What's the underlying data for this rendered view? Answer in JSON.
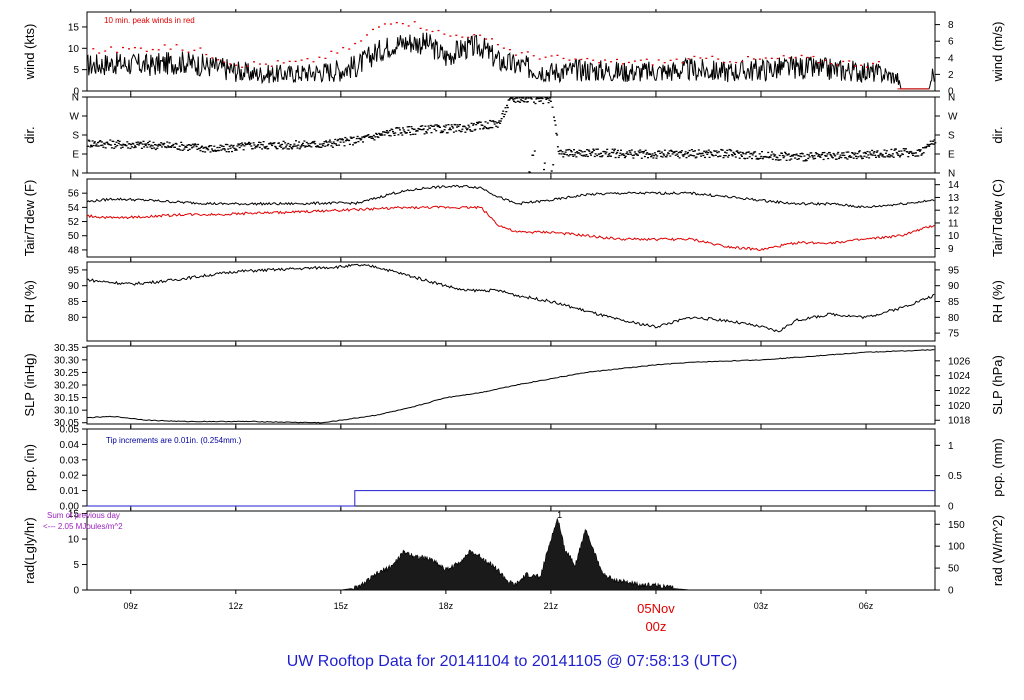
{
  "page": {
    "title": "UW Rooftop Data for 20141104  to  20141105 @ 07:58:13  (UTC)"
  },
  "colors": {
    "line": "#000000",
    "peak": "#e00000",
    "dew": "#e00000",
    "precip": "#1f1fd0",
    "note": "#00009c",
    "radNote": "#9b1fbf",
    "time": "#e00000",
    "title": "#1f1fd0"
  },
  "time_axis": {
    "range_hours": [
      7.75,
      31.97
    ],
    "ticks": [
      {
        "h": 9,
        "label": "09z"
      },
      {
        "h": 12,
        "label": "12z"
      },
      {
        "h": 15,
        "label": "15z"
      },
      {
        "h": 18,
        "label": "18z"
      },
      {
        "h": 21,
        "label": "21z"
      },
      {
        "h": 24,
        "label": "00z"
      },
      {
        "h": 27,
        "label": "03z"
      },
      {
        "h": 30,
        "label": "06z"
      }
    ],
    "date_label": "05Nov",
    "date_time_label": "00z"
  },
  "chart_data": [
    {
      "id": "wind",
      "type": "line",
      "ylabel_left": "wind (kts)",
      "ylabel_right": "wind (m/s)",
      "ylim": [
        0,
        18.5
      ],
      "yticks_left": [
        {
          "v": 0,
          "label": "0"
        },
        {
          "v": 5,
          "label": "5"
        },
        {
          "v": 10,
          "label": "10"
        },
        {
          "v": 15,
          "label": "15"
        }
      ],
      "yticks_right": [
        {
          "v": 0,
          "label": "0"
        },
        {
          "v": 3.89,
          "label": "2"
        },
        {
          "v": 7.78,
          "label": "4"
        },
        {
          "v": 11.66,
          "label": "6"
        },
        {
          "v": 15.55,
          "label": "8"
        }
      ],
      "note": "10 min. peak winds in red",
      "series": [
        {
          "style": "line",
          "x": [
            7.75,
            8.5,
            9.5,
            10.5,
            11.5,
            12.5,
            13.5,
            14.5,
            15,
            15.5,
            16,
            16.5,
            17,
            17.5,
            18,
            18.5,
            19,
            19.5,
            20,
            21,
            22,
            23,
            24,
            25,
            26,
            27,
            28,
            29,
            30,
            30.5,
            30.9,
            31,
            31.8,
            31.9
          ],
          "y": [
            6,
            6.5,
            6,
            6.8,
            5.5,
            4,
            4,
            4.5,
            5,
            6,
            9,
            11,
            11.5,
            11,
            8,
            10,
            10.5,
            7,
            6,
            4.5,
            5,
            4.5,
            4.5,
            5,
            4.5,
            5,
            5.5,
            5,
            4.5,
            4,
            3,
            0.5,
            0.5,
            4
          ]
        },
        {
          "style": "points",
          "name": "10 min. peak winds in red",
          "x": [
            8,
            9,
            10,
            11,
            12,
            13,
            14,
            15,
            15.5,
            16,
            16.5,
            17,
            17.5,
            18,
            18.5,
            19,
            19.5,
            20,
            21,
            22,
            23,
            24,
            25,
            26,
            27,
            28,
            29,
            30
          ],
          "y": [
            9.5,
            10,
            10.5,
            9.5,
            6.5,
            6.5,
            7,
            9.5,
            11.5,
            15,
            17,
            16,
            15,
            13,
            13.5,
            12.5,
            11,
            9,
            8,
            7,
            7,
            7,
            7.5,
            7.5,
            7.5,
            8,
            7,
            6.5
          ]
        }
      ]
    },
    {
      "id": "dir",
      "type": "scatter",
      "ylabel_left": "dir.",
      "ylabel_right": "dir.",
      "ylim": [
        0,
        360
      ],
      "yticks_left": [
        {
          "v": 0,
          "label": "N"
        },
        {
          "v": 90,
          "label": "E"
        },
        {
          "v": 180,
          "label": "S"
        },
        {
          "v": 270,
          "label": "W"
        },
        {
          "v": 360,
          "label": "N"
        }
      ],
      "yticks_right": [
        {
          "v": 0,
          "label": "N"
        },
        {
          "v": 90,
          "label": "E"
        },
        {
          "v": 180,
          "label": "S"
        },
        {
          "v": 270,
          "label": "W"
        },
        {
          "v": 360,
          "label": "N"
        }
      ],
      "series": [
        {
          "style": "points",
          "x": [
            7.75,
            8.5,
            9.5,
            10.5,
            11.5,
            12.5,
            13.5,
            14.5,
            15.5,
            16.5,
            17.5,
            18.5,
            19.5,
            19.8,
            20,
            20.5,
            21,
            21.2,
            21.5,
            22,
            23,
            24,
            25,
            26,
            27,
            28,
            29,
            30,
            31,
            31.5,
            31.9
          ],
          "y": [
            145,
            140,
            135,
            130,
            115,
            135,
            135,
            140,
            160,
            200,
            210,
            215,
            240,
            345,
            355,
            350,
            350,
            100,
            95,
            100,
            95,
            90,
            95,
            95,
            85,
            80,
            80,
            90,
            100,
            100,
            150
          ]
        }
      ]
    },
    {
      "id": "temp",
      "type": "line",
      "ylabel_left": "Tair/Tdew (F)",
      "ylabel_right": "Tair/Tdew (C)",
      "ylim": [
        47,
        58
      ],
      "yticks_left": [
        {
          "v": 48,
          "label": "48"
        },
        {
          "v": 50,
          "label": "50"
        },
        {
          "v": 52,
          "label": "52"
        },
        {
          "v": 54,
          "label": "54"
        },
        {
          "v": 56,
          "label": "56"
        }
      ],
      "yticks_right": [
        {
          "v": 48.2,
          "label": "9"
        },
        {
          "v": 50,
          "label": "10"
        },
        {
          "v": 51.8,
          "label": "11"
        },
        {
          "v": 53.6,
          "label": "12"
        },
        {
          "v": 55.4,
          "label": "13"
        },
        {
          "v": 57.2,
          "label": "14"
        }
      ],
      "series": [
        {
          "name": "Tair",
          "x": [
            7.75,
            8.5,
            9.5,
            10.5,
            11.5,
            12.5,
            13.5,
            14.5,
            15.5,
            16.5,
            17.5,
            18.5,
            19,
            19.5,
            20,
            21,
            22,
            23,
            24,
            25,
            26,
            27,
            28,
            29,
            30,
            31,
            31.97
          ],
          "y": [
            54.8,
            55.2,
            55,
            54.7,
            54.5,
            54.5,
            54.5,
            54.6,
            54.6,
            56,
            56.8,
            57,
            56.8,
            55.5,
            54.5,
            55,
            55.8,
            56,
            56,
            56,
            55.5,
            55,
            54.5,
            54.5,
            54,
            54.5,
            55
          ]
        },
        {
          "name": "Tdew",
          "x": [
            7.75,
            8.5,
            9.5,
            10.5,
            11.5,
            12.5,
            13.5,
            14.5,
            15.5,
            16.5,
            17.5,
            18.5,
            19,
            19.5,
            20,
            21,
            22,
            23,
            24,
            25,
            26,
            27,
            28,
            29,
            30,
            31,
            31.97
          ],
          "y": [
            52.8,
            52.5,
            52.7,
            53,
            53,
            53.2,
            53.3,
            53.5,
            53.7,
            53.9,
            54,
            54,
            54,
            51.5,
            50.5,
            50.5,
            50,
            49.5,
            49.5,
            49.5,
            48.5,
            48,
            49,
            49,
            49.5,
            50,
            51.5
          ]
        }
      ]
    },
    {
      "id": "rh",
      "type": "line",
      "ylabel_left": "RH (%)",
      "ylabel_right": "RH (%)",
      "ylim": [
        72.5,
        97.5
      ],
      "yticks_left": [
        {
          "v": 80,
          "label": "80"
        },
        {
          "v": 85,
          "label": "85"
        },
        {
          "v": 90,
          "label": "90"
        },
        {
          "v": 95,
          "label": "95"
        }
      ],
      "yticks_right": [
        {
          "v": 75,
          "label": "75"
        },
        {
          "v": 80,
          "label": "80"
        },
        {
          "v": 85,
          "label": "85"
        },
        {
          "v": 90,
          "label": "90"
        },
        {
          "v": 95,
          "label": "95"
        }
      ],
      "series": [
        {
          "x": [
            7.75,
            8,
            9,
            10,
            11,
            12,
            13,
            14,
            15,
            15.5,
            16,
            16.5,
            17,
            17.5,
            18,
            18.5,
            19,
            19.5,
            20,
            21,
            22,
            23,
            24,
            25,
            26,
            27,
            27.5,
            28,
            29,
            30,
            31,
            31.97
          ],
          "y": [
            92,
            91.5,
            90.5,
            91.5,
            93,
            94.5,
            95,
            95.5,
            96,
            96.5,
            96,
            94.5,
            93,
            91.5,
            90,
            88.5,
            88.5,
            88.5,
            87,
            85,
            82,
            79,
            77,
            80,
            79,
            77,
            75.5,
            79,
            81,
            80,
            83,
            87
          ]
        }
      ]
    },
    {
      "id": "slp",
      "type": "line",
      "ylabel_left": "SLP (inHg)",
      "ylabel_right": "SLP (hPa)",
      "ylim": [
        30.045,
        30.355
      ],
      "yticks_left": [
        {
          "v": 30.05,
          "label": "30.05"
        },
        {
          "v": 30.1,
          "label": "30.10"
        },
        {
          "v": 30.15,
          "label": "30.15"
        },
        {
          "v": 30.2,
          "label": "30.20"
        },
        {
          "v": 30.25,
          "label": "30.25"
        },
        {
          "v": 30.3,
          "label": "30.30"
        },
        {
          "v": 30.35,
          "label": "30.35"
        }
      ],
      "yticks_right": [
        {
          "v": 30.06,
          "label": "1018"
        },
        {
          "v": 30.119,
          "label": "1020"
        },
        {
          "v": 30.178,
          "label": "1022"
        },
        {
          "v": 30.237,
          "label": "1024"
        },
        {
          "v": 30.296,
          "label": "1026"
        }
      ],
      "series": [
        {
          "x": [
            7.75,
            8.5,
            9.5,
            10.5,
            11.5,
            12.5,
            13.5,
            14.5,
            15,
            16,
            17,
            18,
            19,
            20,
            21,
            22,
            23,
            24,
            25,
            26,
            27,
            28,
            29,
            30,
            31,
            31.97
          ],
          "y": [
            30.07,
            30.075,
            30.06,
            30.055,
            30.055,
            30.055,
            30.052,
            30.05,
            30.06,
            30.08,
            30.11,
            30.15,
            30.17,
            30.2,
            30.225,
            30.25,
            30.265,
            30.28,
            30.29,
            30.295,
            30.3,
            30.31,
            30.32,
            30.33,
            30.335,
            30.34
          ]
        }
      ]
    },
    {
      "id": "pcp",
      "type": "line",
      "ylabel_left": "pcp. (in)",
      "ylabel_right": "pcp. (mm)",
      "ylim": [
        0,
        0.05
      ],
      "yticks_left": [
        {
          "v": 0,
          "label": "0.00"
        },
        {
          "v": 0.01,
          "label": "0.01"
        },
        {
          "v": 0.02,
          "label": "0.02"
        },
        {
          "v": 0.03,
          "label": "0.03"
        },
        {
          "v": 0.04,
          "label": "0.04"
        },
        {
          "v": 0.05,
          "label": "0.05"
        }
      ],
      "yticks_right": [
        {
          "v": 0,
          "label": "0"
        },
        {
          "v": 0.0197,
          "label": "0.5"
        },
        {
          "v": 0.0394,
          "label": "1"
        }
      ],
      "note": "Tip increments are 0.01in. (0.254mm.)",
      "series": [
        {
          "x": [
            7.75,
            15.4,
            15.4,
            31.97
          ],
          "y": [
            0,
            0,
            0.01,
            0.01
          ]
        }
      ]
    },
    {
      "id": "rad",
      "type": "area",
      "ylabel_left": "rad(Lgly/hr)",
      "ylabel_right": "rad (W/m^2)",
      "ylim": [
        0,
        15.5
      ],
      "yticks_left": [
        {
          "v": 0,
          "label": "0"
        },
        {
          "v": 5,
          "label": "5"
        },
        {
          "v": 10,
          "label": "10"
        },
        {
          "v": 15,
          "label": "15"
        }
      ],
      "yticks_right": [
        {
          "v": 0,
          "label": "0"
        },
        {
          "v": 4.3,
          "label": "50"
        },
        {
          "v": 8.6,
          "label": "100"
        },
        {
          "v": 12.9,
          "label": "150"
        }
      ],
      "note_line1": "Sum of previous day",
      "note_line2": "<--- 2.05 MJoules/m^2",
      "peak_label": "1",
      "series": [
        {
          "x": [
            15,
            15.5,
            16,
            16.5,
            16.8,
            17.2,
            17.6,
            18,
            18.3,
            18.7,
            19,
            19.4,
            19.8,
            20,
            20.3,
            20.7,
            21,
            21.2,
            21.4,
            21.7,
            22,
            22.2,
            22.5,
            22.8,
            23.2,
            23.5,
            24,
            24.5,
            25
          ],
          "y": [
            0,
            0.5,
            3,
            5,
            7.5,
            6.5,
            6,
            4,
            5,
            7.5,
            6.5,
            4.5,
            1.5,
            1,
            3,
            2.5,
            10,
            14,
            8,
            5,
            12,
            8,
            3,
            2,
            1.5,
            1,
            1,
            0.3,
            0
          ]
        }
      ]
    }
  ]
}
